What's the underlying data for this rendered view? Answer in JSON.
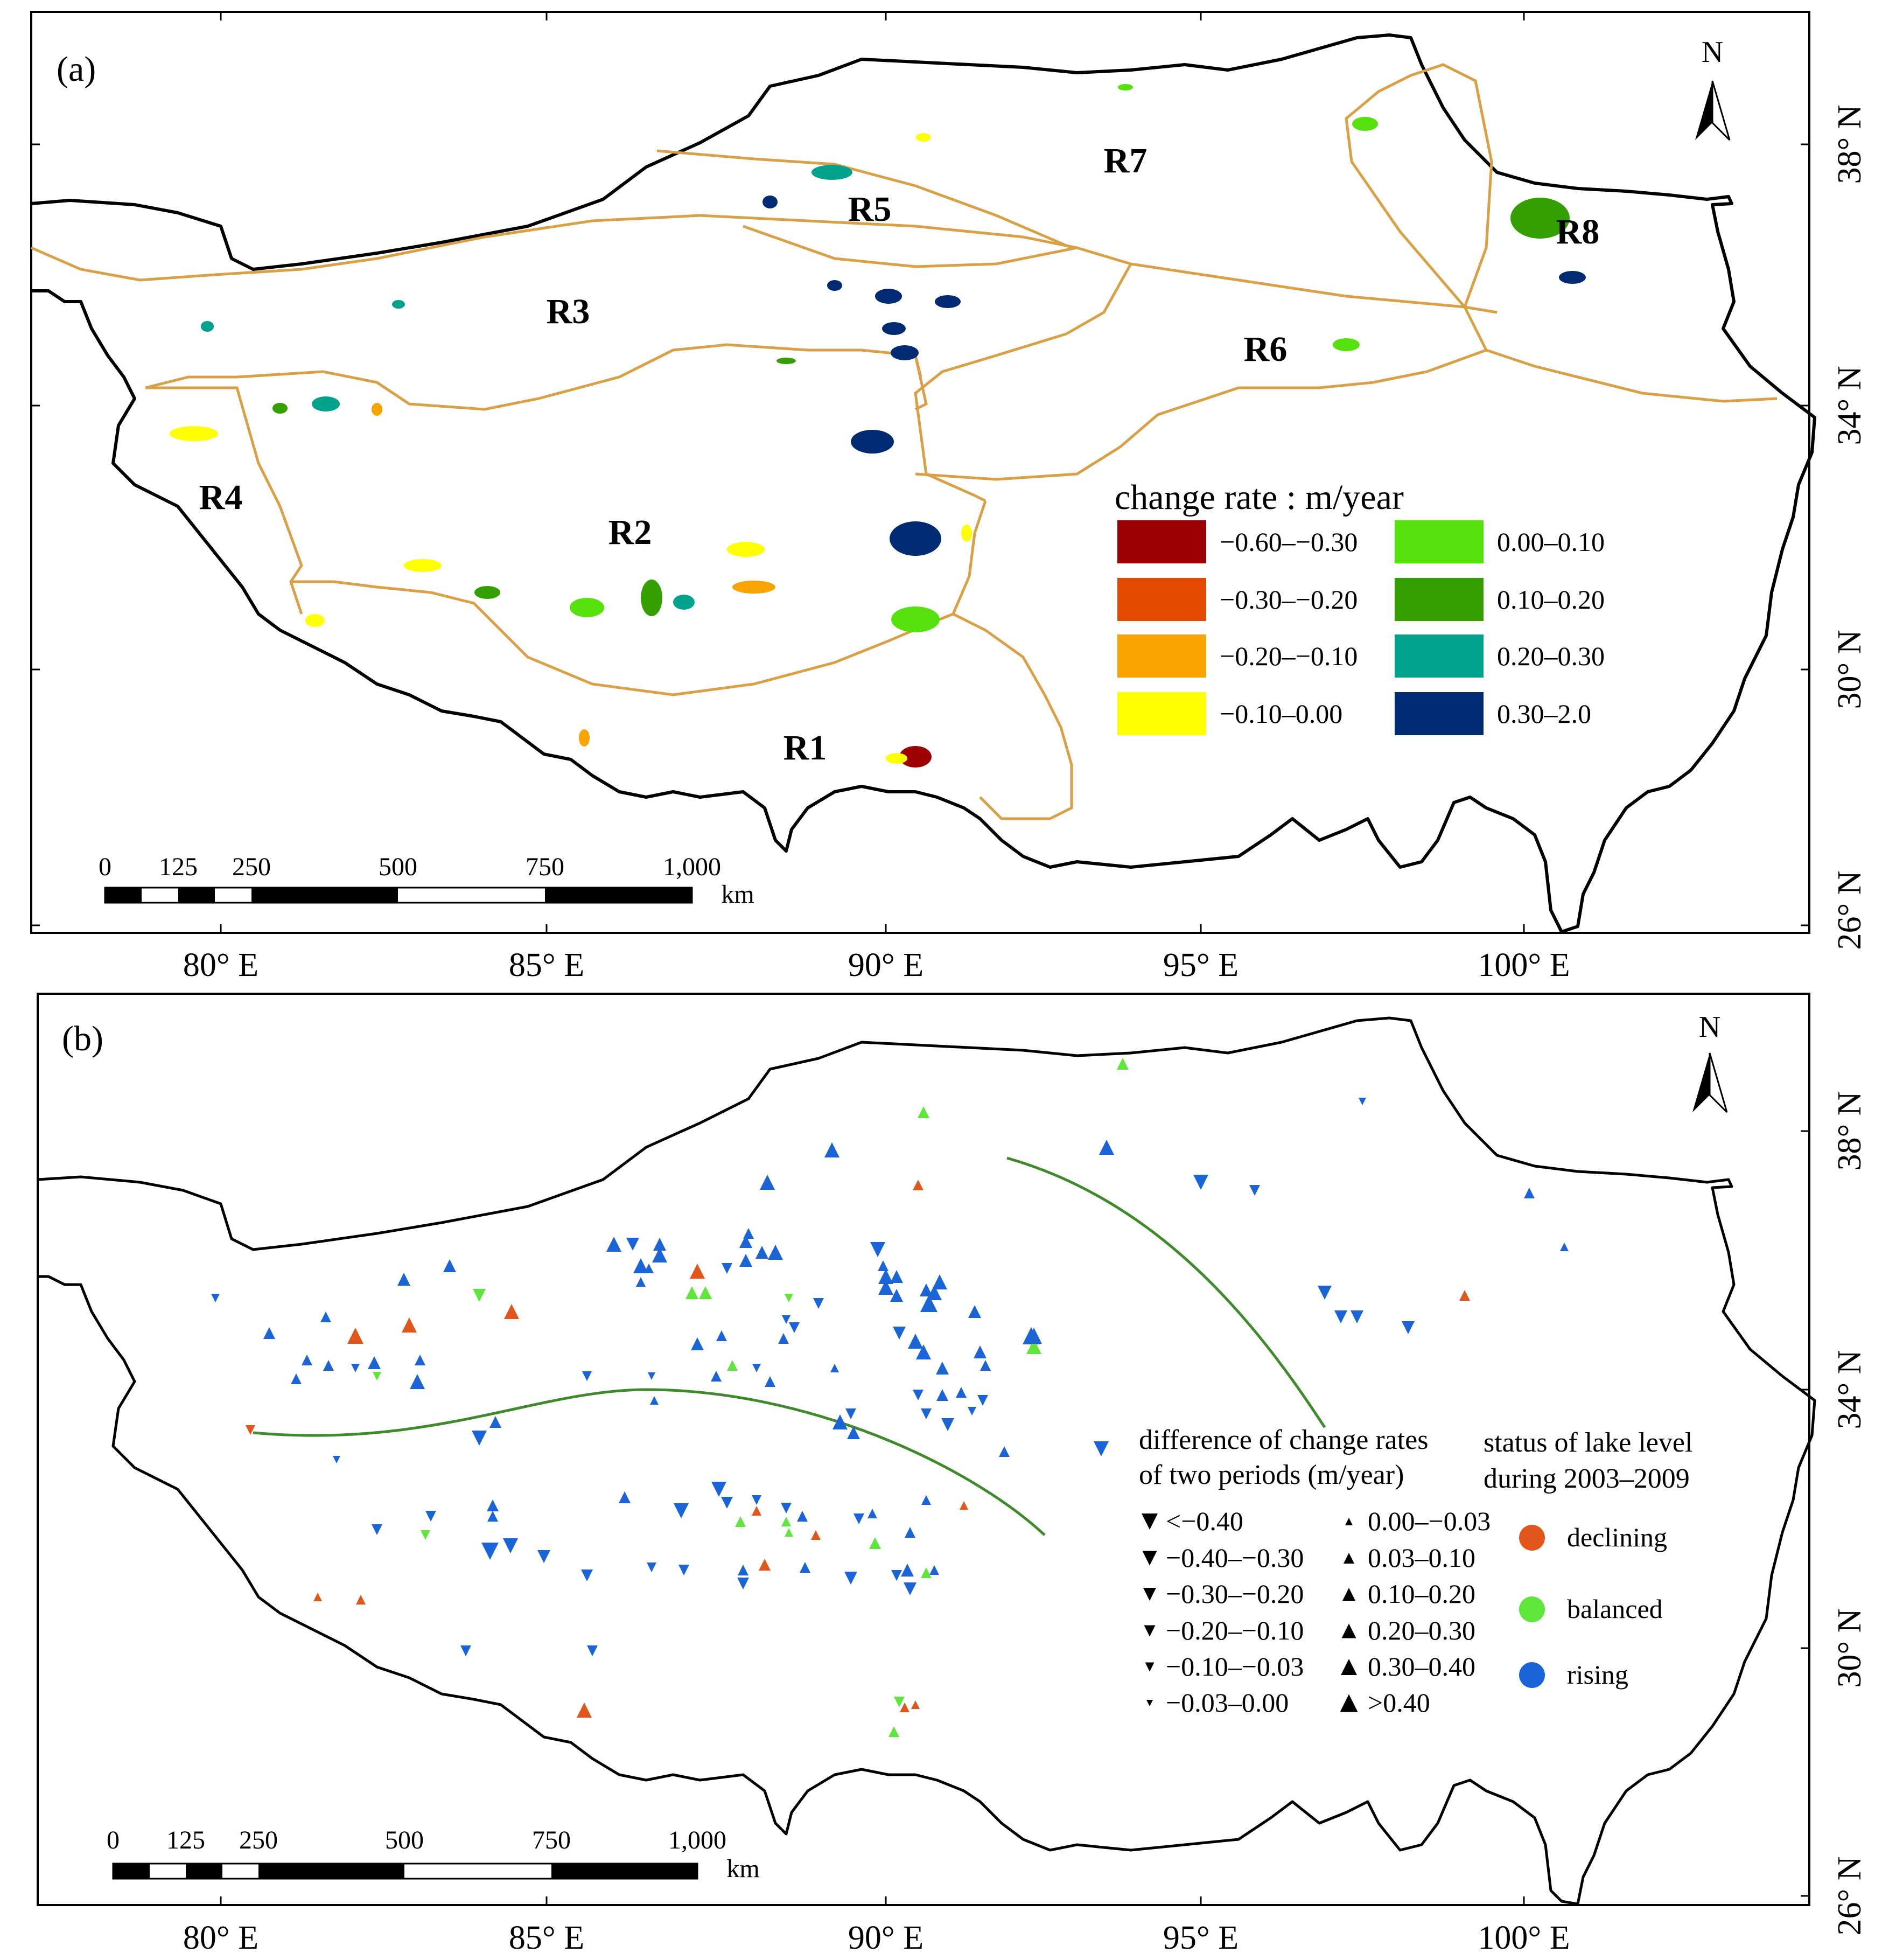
{
  "panel_a": {
    "label": "(a)",
    "north": "N",
    "regions": [
      "R1",
      "R2",
      "R3",
      "R4",
      "R5",
      "R6",
      "R7",
      "R8"
    ],
    "legend": {
      "title": "change rate : m/year",
      "items": [
        {
          "label": "−0.60–−0.30",
          "color": "#9c0000"
        },
        {
          "label": "−0.30–−0.20",
          "color": "#e24a00"
        },
        {
          "label": "−0.20–−0.10",
          "color": "#f7a400"
        },
        {
          "label": "−0.10–0.00",
          "color": "#ffff00"
        },
        {
          "label": "0.00–0.10",
          "color": "#55e10b"
        },
        {
          "label": "0.10–0.20",
          "color": "#33a000"
        },
        {
          "label": "0.20–0.30",
          "color": "#00a28c"
        },
        {
          "label": "0.30–2.0",
          "color": "#002b73"
        }
      ]
    },
    "scale": {
      "ticks": [
        "0",
        "125",
        "250",
        "500",
        "750",
        "1,000"
      ],
      "unit": "km"
    },
    "x_ticks": [
      "80° E",
      "85° E",
      "90° E",
      "95° E",
      "100° E"
    ],
    "y_ticks": [
      "38° N",
      "34° N",
      "30° N",
      "26° N"
    ]
  },
  "panel_b": {
    "label": "(b)",
    "north": "N",
    "legend1": {
      "title_line1": "difference of change rates",
      "title_line2": "of two periods (m/year)",
      "down": [
        "<−0.40",
        "−0.40–−0.30",
        "−0.30–−0.20",
        "−0.20–−0.10",
        "−0.10–−0.03",
        "−0.03–0.00"
      ],
      "up": [
        "0.00–−0.03",
        "0.03–0.10",
        "0.10–0.20",
        "0.20–0.30",
        "0.30–0.40",
        ">0.40"
      ]
    },
    "legend2": {
      "title_line1": "status of lake level",
      "title_line2": "during 2003–2009",
      "items": [
        {
          "label": "declining",
          "color": "#e2561b"
        },
        {
          "label": "balanced",
          "color": "#5ee63a"
        },
        {
          "label": "rising",
          "color": "#1a64d8"
        }
      ]
    },
    "scale": {
      "ticks": [
        "0",
        "125",
        "250",
        "500",
        "750",
        "1,000"
      ],
      "unit": "km"
    },
    "x_ticks": [
      "80° E",
      "85° E",
      "90° E",
      "95° E",
      "100° E"
    ],
    "y_ticks": [
      "38° N",
      "34° N",
      "30° N",
      "26° N"
    ]
  }
}
